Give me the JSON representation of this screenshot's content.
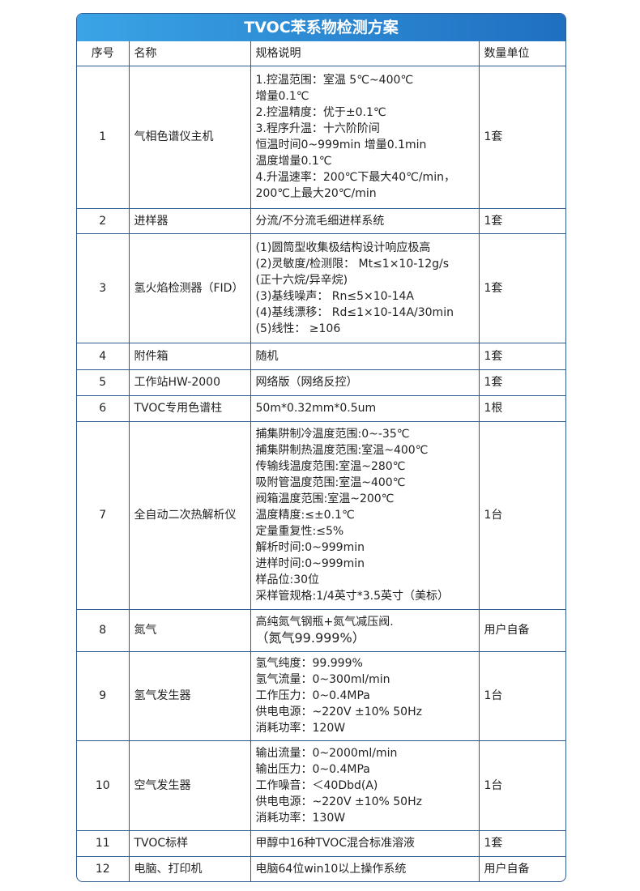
{
  "title": "TVOC苯系物检测方案",
  "headers": [
    "序号",
    "名称",
    "规格说明",
    "数量单位"
  ],
  "rows": [
    {
      "no": "1",
      "name": "气相色谱仪主机",
      "spec": "1.控温范围：室温 5℃~400℃\n增量0.1℃\n2.控温精度：优于±0.1℃\n3.程序升温：十六阶阶间\n恒温时间0~999min 增量0.1min\n温度增量0.1℃\n4.升温速率：200℃下最大40℃/min，\n200℃上最大20℃/min",
      "qty": "1套"
    },
    {
      "no": "2",
      "name": "进样器",
      "spec": "分流/不分流毛细进样系统",
      "qty": "1套"
    },
    {
      "no": "3",
      "name": "氢火焰检测器（FID）",
      "spec": "(1)圆筒型收集极结构设计响应极高\n(2)灵敏度/检测限： Mt≤1×10-12g/s\n(正十六烷/异辛烷)\n(3)基线噪声： Rn≤5×10-14A\n(4)基线漂移： Rd≤1×10-14A/30min\n(5)线性： ≥106",
      "qty": "1套"
    },
    {
      "no": "4",
      "name": "附件箱",
      "spec": "随机",
      "qty": "1套"
    },
    {
      "no": "5",
      "name": "工作站HW-2000",
      "spec": "网络版（网络反控）",
      "qty": "1套"
    },
    {
      "no": "6",
      "name": "TVOC专用色谱柱",
      "spec": "50m*0.32mm*0.5um",
      "qty": "1根"
    },
    {
      "no": "7",
      "name": "全自动二次热解析仪",
      "spec": "捕集阱制冷温度范围:0~-35℃\n捕集阱制热温度范围:室温~400℃\n传输线温度范围:室温~280℃\n吸附管温度范围:室温~400℃\n阀箱温度范围:室温~200℃\n温度精度:≤±0.1℃\n定量重复性:≤5%\n解析时间:0~999min\n进样时间:0~999min\n样品位:30位\n采样管规格:1/4英寸*3.5英寸（美标）",
      "qty": "1台"
    },
    {
      "no": "8",
      "name": "氮气",
      "spec": "高纯氮气钢瓶+氮气减压阀.",
      "spec2": "（氮气99.999%）",
      "qty": "用户自备"
    },
    {
      "no": "9",
      "name": "氢气发生器",
      "spec": "氢气纯度：99.999%\n氢气流量：0~300ml/min\n工作压力：0~0.4MPa\n供电电源：~220V ±10% 50Hz\n消耗功率：120W",
      "qty": "1台"
    },
    {
      "no": "10",
      "name": "空气发生器",
      "spec": "输出流量：0~2000ml/min\n输出压力：0~0.4MPa\n工作噪音：＜40Dbd(A)\n供电电源：~220V ±10% 50Hz\n消耗功率：130W",
      "qty": "1台"
    },
    {
      "no": "11",
      "name": "TVOC标样",
      "spec": "甲醇中16种TVOC混合标准溶液",
      "qty": "1套"
    },
    {
      "no": "12",
      "name": "电脑、打印机",
      "spec": "电脑64位win10以上操作系统",
      "qty": "用户自备"
    }
  ],
  "colors": {
    "header_start": "#3aa4e6",
    "header_end": "#1f6fc0",
    "border": "#2f5c8f"
  }
}
